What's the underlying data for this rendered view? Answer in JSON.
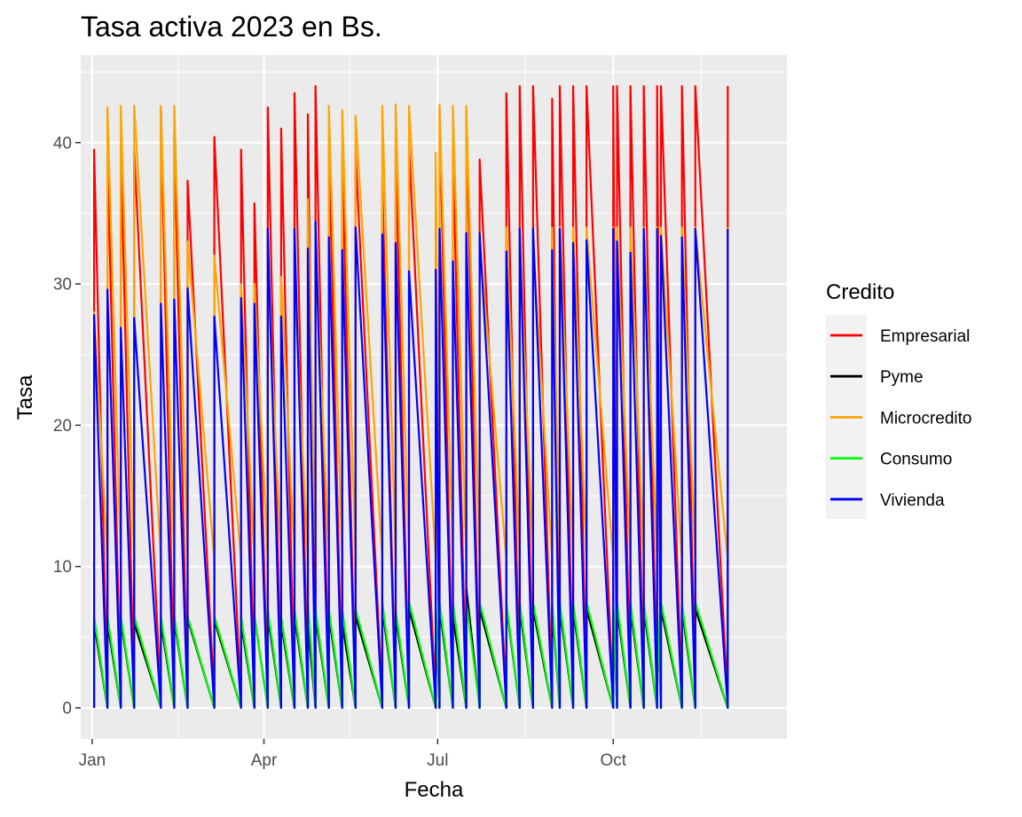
{
  "chart_data": {
    "type": "line",
    "title": "Tasa activa 2023 en Bs.",
    "xlabel": "Fecha",
    "ylabel": "Tasa",
    "x_ticks": [
      {
        "date": "2023-01-01",
        "label": "Jan"
      },
      {
        "date": "2023-04-01",
        "label": "Apr"
      },
      {
        "date": "2023-07-01",
        "label": "Jul"
      },
      {
        "date": "2023-10-01",
        "label": "Oct"
      }
    ],
    "x_minor_ticks": [
      "2023-02-15",
      "2023-05-16",
      "2023-08-16",
      "2023-11-16"
    ],
    "xlim": [
      "2022-12-26",
      "2023-12-31"
    ],
    "y_ticks": [
      0,
      10,
      20,
      30,
      40
    ],
    "ylim": [
      -2.2,
      46.2
    ],
    "grid": true,
    "legend": {
      "title": "Credito",
      "position": "right"
    },
    "series": [
      {
        "name": "Empresarial",
        "color": "#ff0000",
        "low": 0.5,
        "high": [
          39.5,
          39.3,
          39.7,
          39.5,
          42.5,
          40.7,
          37.3,
          40.4,
          39.5,
          35.7,
          42.5,
          41.0,
          43.5,
          42.0,
          44.0,
          40.2,
          39.0,
          39.3,
          37.2,
          39.6,
          39.8,
          38.3,
          42.5,
          39.5,
          42.3,
          38.8,
          43.5,
          44.0,
          44.0,
          43.1,
          44.0,
          44.0,
          44.0,
          44.0,
          44.0,
          44.0,
          44.0,
          44.0,
          44.0,
          44.0,
          44.0,
          44.0
        ]
      },
      {
        "name": "Pyme",
        "color": "#000000",
        "low": 0.0,
        "high": [
          6.0,
          6.0,
          6.2,
          6.0,
          6.0,
          6.2,
          6.3,
          6.2,
          6.0,
          6.5,
          6.5,
          6.0,
          6.5,
          6.0,
          6.5,
          6.5,
          6.0,
          6.5,
          7.0,
          6.5,
          7.0,
          6.5,
          7.0,
          6.5,
          8.5,
          7.0,
          7.2,
          7.0,
          7.0,
          7.0,
          7.0,
          7.0,
          7.0,
          7.0,
          7.0,
          7.0,
          7.0,
          7.0,
          7.0,
          7.0,
          7.0,
          6.0
        ]
      },
      {
        "name": "Microcredito",
        "color": "#ffa500",
        "low": 10.5,
        "high": [
          28.0,
          42.5,
          42.6,
          42.6,
          42.6,
          42.6,
          33.0,
          32.0,
          30.0,
          30.0,
          31.0,
          30.5,
          30.0,
          36.0,
          33.0,
          42.6,
          42.3,
          41.9,
          42.6,
          42.7,
          42.6,
          39.3,
          42.7,
          42.6,
          42.6,
          33.0,
          34.0,
          33.0,
          33.0,
          34.0,
          34.0,
          34.0,
          34.0,
          34.0,
          34.0,
          34.0,
          34.0,
          34.0,
          34.0,
          34.0,
          34.0,
          34.0
        ]
      },
      {
        "name": "Consumo",
        "color": "#00ff00",
        "low": 0.0,
        "high": [
          6.5,
          6.5,
          6.5,
          6.5,
          6.5,
          6.5,
          6.5,
          6.5,
          6.5,
          6.5,
          7.0,
          6.5,
          7.0,
          7.5,
          7.0,
          7.0,
          7.0,
          7.0,
          7.5,
          7.0,
          7.5,
          7.5,
          7.5,
          7.5,
          7.5,
          7.5,
          7.5,
          7.5,
          7.5,
          7.5,
          7.5,
          7.5,
          7.5,
          7.5,
          7.5,
          7.5,
          7.5,
          7.5,
          7.5,
          7.5,
          7.5,
          7.0
        ]
      },
      {
        "name": "Vivienda",
        "color": "#0000ff",
        "low": 0.0,
        "mid": 6.5,
        "high": [
          27.8,
          29.6,
          26.9,
          27.6,
          28.6,
          28.9,
          29.7,
          27.7,
          29.0,
          28.6,
          33.9,
          27.7,
          33.9,
          32.5,
          34.4,
          33.3,
          32.4,
          34.0,
          33.5,
          32.9,
          30.9,
          31.0,
          33.9,
          31.6,
          33.6,
          33.6,
          32.3,
          33.9,
          33.9,
          32.4,
          33.9,
          32.9,
          33.1,
          33.9,
          33.0,
          32.2,
          33.9,
          33.9,
          33.4,
          33.3,
          33.9,
          33.9
        ]
      }
    ],
    "dates": [
      "2023-01-02",
      "2023-01-09",
      "2023-01-16",
      "2023-01-23",
      "2023-02-06",
      "2023-02-13",
      "2023-02-20",
      "2023-03-06",
      "2023-03-20",
      "2023-03-27",
      "2023-04-03",
      "2023-04-10",
      "2023-04-17",
      "2023-04-24",
      "2023-04-28",
      "2023-05-05",
      "2023-05-12",
      "2023-05-19",
      "2023-06-02",
      "2023-06-09",
      "2023-06-16",
      "2023-06-30",
      "2023-07-02",
      "2023-07-09",
      "2023-07-16",
      "2023-07-23",
      "2023-08-06",
      "2023-08-13",
      "2023-08-20",
      "2023-08-30",
      "2023-09-03",
      "2023-09-10",
      "2023-09-17",
      "2023-10-01",
      "2023-10-03",
      "2023-10-10",
      "2023-10-17",
      "2023-10-24",
      "2023-10-26",
      "2023-11-06",
      "2023-11-13",
      "2023-11-30"
    ]
  }
}
